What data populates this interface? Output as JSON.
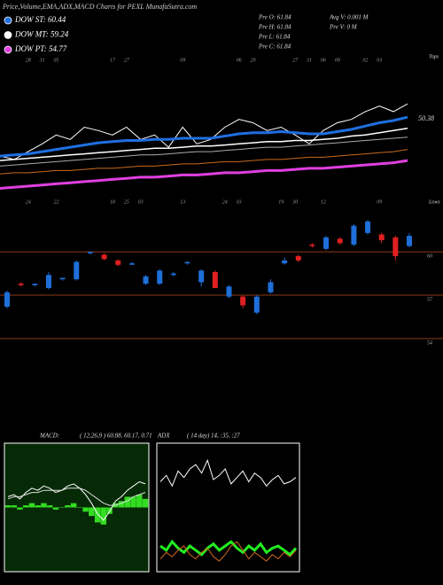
{
  "header": {
    "title": "Price,Volume,EMA,ADX,MACD Charts for PEXL MunafaSutra.com",
    "info": [
      "Pre O: 61.84",
      "Avg V: 0.001 M",
      "Pre H: 61.84",
      "Pre V: 0 M",
      "Pre L: 61.84",
      "Pre C: 61.84"
    ]
  },
  "chart_data": [
    {
      "type": "line",
      "categories": [
        null,
        null,
        "28",
        "31",
        "05",
        null,
        null,
        null,
        "17",
        "27",
        null,
        null,
        null,
        "09",
        null,
        null,
        null,
        "06",
        "20",
        null,
        null,
        "27",
        "31",
        "06",
        "09",
        null,
        "02",
        "03",
        null,
        null
      ],
      "bottom_categories": [
        null,
        null,
        "24",
        null,
        "22",
        null,
        null,
        null,
        "18",
        "25",
        "03",
        null,
        null,
        "13",
        null,
        null,
        "24",
        "03",
        null,
        null,
        "19",
        "30",
        null,
        "12",
        null,
        null,
        null,
        "09",
        null,
        null
      ],
      "annotations": [
        "Tops",
        "50.38",
        "Lows"
      ],
      "ylim": [
        43,
        56
      ],
      "series": [
        {
          "color": "#ffffff",
          "width": 1,
          "values": [
            46.9,
            46.6,
            47.3,
            48.0,
            48.8,
            48.4,
            49.5,
            49.2,
            48.8,
            49.5,
            48.4,
            48.8,
            47.7,
            49.5,
            48.0,
            48.4,
            49.5,
            50.2,
            49.9,
            49.2,
            49.5,
            48.8,
            48.0,
            49.2,
            49.9,
            50.2,
            50.9,
            51.4,
            50.9,
            51.6
          ]
        },
        {
          "name": "DOW ST: 60.44",
          "color": "#1f6fe0",
          "width": 3,
          "values": [
            46.9,
            47.0,
            47.1,
            47.3,
            47.5,
            47.7,
            47.9,
            48.1,
            48.2,
            48.3,
            48.3,
            48.4,
            48.4,
            48.5,
            48.5,
            48.5,
            48.7,
            48.9,
            49.0,
            49.0,
            49.1,
            49.0,
            48.9,
            48.9,
            49.1,
            49.3,
            49.6,
            49.9,
            50.1,
            50.4
          ]
        },
        {
          "name": "DOW MT: 59.24",
          "color": "#ffffff",
          "width": 1.5,
          "values": [
            46.5,
            46.6,
            46.7,
            46.8,
            46.9,
            47.0,
            47.1,
            47.2,
            47.3,
            47.4,
            47.5,
            47.6,
            47.6,
            47.7,
            47.8,
            47.8,
            47.9,
            48.0,
            48.1,
            48.2,
            48.2,
            48.3,
            48.3,
            48.4,
            48.5,
            48.7,
            48.8,
            49.0,
            49.2,
            49.4
          ]
        },
        {
          "color": "#aaaaaa",
          "width": 1,
          "values": [
            46.0,
            46.1,
            46.2,
            46.3,
            46.4,
            46.5,
            46.6,
            46.7,
            46.8,
            46.9,
            47.0,
            47.0,
            47.1,
            47.2,
            47.3,
            47.3,
            47.4,
            47.5,
            47.6,
            47.7,
            47.7,
            47.8,
            47.9,
            48.0,
            48.1,
            48.2,
            48.3,
            48.4,
            48.5,
            48.6
          ]
        },
        {
          "color": "#c86a1e",
          "width": 1,
          "values": [
            45.3,
            45.4,
            45.4,
            45.5,
            45.6,
            45.6,
            45.7,
            45.8,
            45.8,
            45.9,
            46.0,
            46.0,
            46.1,
            46.2,
            46.2,
            46.3,
            46.4,
            46.4,
            46.5,
            46.6,
            46.6,
            46.7,
            46.8,
            46.8,
            46.9,
            47.0,
            47.1,
            47.2,
            47.3,
            47.5
          ]
        },
        {
          "name": "DOW PT: 54.77",
          "color": "#e040e0",
          "width": 3,
          "values": [
            44.0,
            44.1,
            44.2,
            44.3,
            44.4,
            44.5,
            44.6,
            44.7,
            44.8,
            44.9,
            45.0,
            45.0,
            45.1,
            45.2,
            45.2,
            45.3,
            45.4,
            45.4,
            45.5,
            45.6,
            45.6,
            45.7,
            45.8,
            45.8,
            45.9,
            46.0,
            46.1,
            46.2,
            46.3,
            46.5
          ]
        }
      ]
    },
    {
      "type": "candlestick",
      "up_color": "#1e6fd9",
      "down_color": "#e02020",
      "grid_color": "#8b3a1a",
      "ylim": [
        52.9,
        62.7
      ],
      "yticks": [
        60,
        57,
        54
      ],
      "open": [
        56.2,
        57.8,
        57.7,
        57.5,
        58.1,
        58.1,
        59.9,
        59.8,
        59.4,
        59.2,
        57.8,
        57.8,
        58.4,
        59.2,
        57.9,
        58.6,
        56.9,
        56.9,
        55.8,
        57.2,
        59.2,
        59.7,
        60.5,
        60.2,
        60.9,
        60.5,
        61.3,
        61.2,
        61.0,
        60.4
      ],
      "high": [
        57.3,
        57.9,
        57.8,
        58.6,
        58.2,
        59.4,
        60.0,
        59.9,
        59.5,
        59.3,
        58.4,
        58.8,
        58.6,
        59.3,
        58.8,
        58.7,
        57.7,
        57.0,
        57.0,
        58.1,
        59.6,
        59.8,
        60.6,
        61.1,
        61.0,
        61.9,
        62.2,
        61.3,
        61.1,
        61.3
      ],
      "low": [
        56.1,
        57.6,
        57.6,
        57.4,
        58.0,
        58.0,
        59.8,
        59.4,
        59.0,
        59.1,
        57.7,
        57.7,
        58.3,
        59.1,
        57.6,
        57.5,
        56.8,
        56.1,
        55.7,
        57.1,
        59.1,
        59.3,
        60.3,
        60.1,
        60.5,
        60.4,
        61.2,
        60.6,
        59.4,
        60.3
      ],
      "close": [
        57.2,
        57.7,
        57.8,
        58.4,
        58.2,
        59.3,
        60.0,
        59.5,
        59.1,
        59.2,
        58.3,
        58.7,
        58.5,
        59.3,
        58.7,
        57.5,
        57.6,
        56.3,
        56.9,
        57.9,
        59.4,
        59.4,
        60.4,
        61.0,
        60.6,
        61.8,
        62.1,
        60.8,
        59.7,
        61.1
      ]
    },
    {
      "type": "macd",
      "title": "MACD:",
      "subtitle": "( 12,26,9 ) 60.88, 60.17, 0.71",
      "background": "#062a06",
      "ylim": [
        -3,
        3
      ],
      "series": [
        {
          "kind": "bar",
          "color": "#33dd22",
          "values": [
            0.1,
            0.1,
            -0.1,
            0.1,
            0.2,
            0.1,
            0.2,
            0.1,
            -0.1,
            0.0,
            0.1,
            0.2,
            0.0,
            -0.2,
            -0.4,
            -0.7,
            -0.8,
            -0.3,
            0.2,
            0.3,
            0.5,
            0.5,
            0.6,
            0.4
          ]
        },
        {
          "kind": "line",
          "color": "#ffffff",
          "values": [
            0.5,
            0.6,
            0.4,
            0.7,
            0.9,
            0.8,
            1.0,
            0.9,
            0.7,
            0.8,
            1.0,
            1.1,
            0.9,
            0.6,
            0.2,
            -0.3,
            -0.6,
            -0.2,
            0.3,
            0.5,
            0.8,
            1.0,
            1.2,
            1.1
          ]
        },
        {
          "kind": "line",
          "color": "#dddddd",
          "values": [
            0.4,
            0.5,
            0.5,
            0.6,
            0.7,
            0.7,
            0.8,
            0.8,
            0.8,
            0.8,
            0.9,
            0.9,
            0.9,
            0.8,
            0.6,
            0.4,
            0.2,
            0.1,
            0.1,
            0.2,
            0.3,
            0.5,
            0.6,
            0.7
          ]
        }
      ]
    },
    {
      "type": "line",
      "title": "ADX",
      "subtitle": "( 14  day) 14, :35, :27",
      "background": "#000000",
      "ylim": [
        0,
        60
      ],
      "series": [
        {
          "color": "#ffffff",
          "width": 1,
          "values": [
            42,
            45,
            40,
            47,
            44,
            48,
            50,
            46,
            52,
            43,
            45,
            48,
            41,
            44,
            47,
            42,
            46,
            44,
            40,
            43,
            45,
            41,
            42,
            44
          ]
        },
        {
          "color": "#22ee22",
          "width": 3,
          "values": [
            12,
            10,
            14,
            11,
            9,
            12,
            10,
            8,
            11,
            13,
            10,
            12,
            14,
            11,
            9,
            12,
            10,
            13,
            9,
            11,
            12,
            10,
            8,
            11
          ]
        },
        {
          "color": "#d2691e",
          "width": 1,
          "values": [
            6,
            9,
            7,
            10,
            12,
            8,
            6,
            9,
            11,
            7,
            5,
            8,
            12,
            14,
            10,
            6,
            9,
            7,
            5,
            8,
            6,
            9,
            7,
            10
          ]
        }
      ]
    }
  ]
}
